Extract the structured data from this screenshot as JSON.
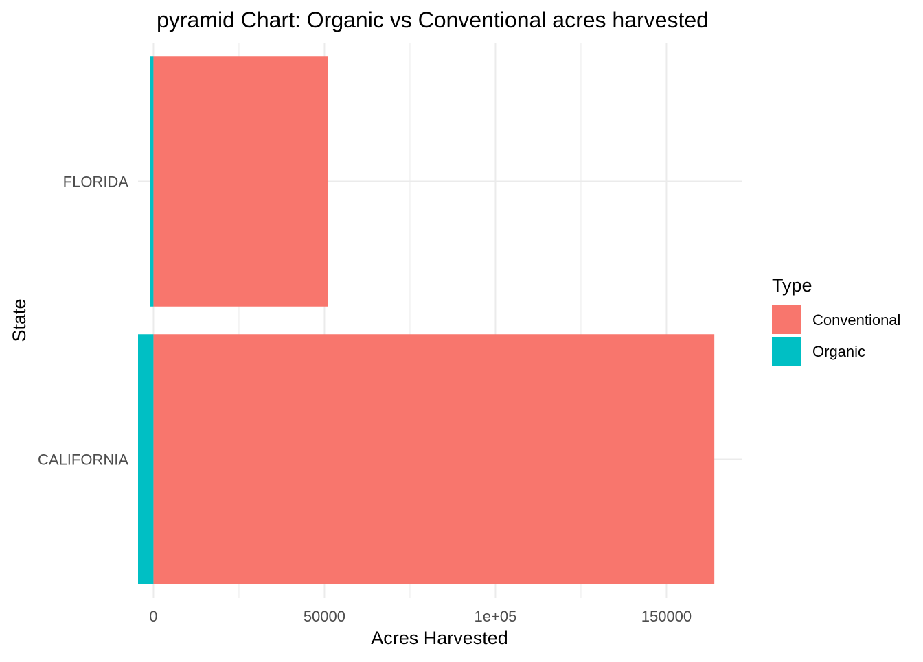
{
  "chart_data": {
    "type": "bar",
    "orientation": "horizontal",
    "title": "pyramid Chart: Organic vs Conventional acres harvested",
    "xlabel": "Acres Harvested",
    "ylabel": "State",
    "categories": [
      "CALIFORNIA",
      "FLORIDA"
    ],
    "series": [
      {
        "name": "Conventional",
        "color": "#F8766D",
        "values": [
          164000,
          51000
        ]
      },
      {
        "name": "Organic",
        "color": "#00BFC4",
        "values": [
          -4500,
          -1000
        ]
      }
    ],
    "xlim": [
      -4500,
      172000
    ],
    "x_ticks": [
      {
        "value": 0,
        "label": "0"
      },
      {
        "value": 50000,
        "label": "50000"
      },
      {
        "value": 100000,
        "label": "1e+05"
      },
      {
        "value": 150000,
        "label": "150000"
      }
    ],
    "x_minor_ticks": [
      25000,
      75000,
      125000
    ],
    "grid": true,
    "legend": {
      "title": "Type",
      "position": "right",
      "entries": [
        {
          "label": "Conventional",
          "color": "#F8766D"
        },
        {
          "label": "Organic",
          "color": "#00BFC4"
        }
      ]
    }
  }
}
